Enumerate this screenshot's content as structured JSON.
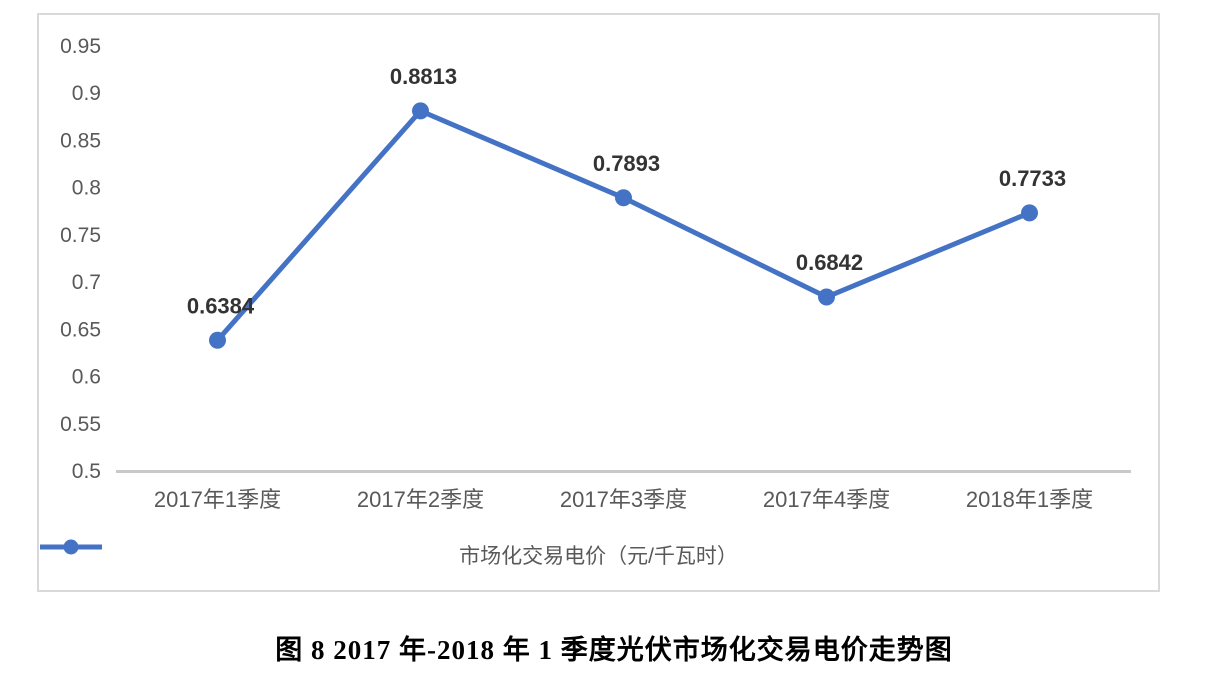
{
  "figure": {
    "caption": "图 8 2017 年-2018 年 1 季度光伏市场化交易电价走势图"
  },
  "chart_data": {
    "type": "line",
    "title": "",
    "categories": [
      "2017年1季度",
      "2017年2季度",
      "2017年3季度",
      "2017年4季度",
      "2018年1季度"
    ],
    "series": [
      {
        "name": "市场化交易电价（元/千瓦时）",
        "values": [
          0.6384,
          0.8813,
          0.7893,
          0.6842,
          0.7733
        ],
        "data_labels": [
          "0.6384",
          "0.8813",
          "0.7893",
          "0.6842",
          "0.7733"
        ],
        "color": "#4472C4"
      }
    ],
    "xlabel": "",
    "ylabel": "",
    "ylim": [
      0.5,
      0.95
    ],
    "ytick_step": 0.05,
    "yticks": [
      "0.95",
      "0.9",
      "0.85",
      "0.8",
      "0.75",
      "0.7",
      "0.65",
      "0.6",
      "0.55",
      "0.5"
    ],
    "grid": false,
    "legend_position": "bottom",
    "markers": true
  },
  "colors": {
    "line": "#4472C4",
    "axis_text": "#595959",
    "data_label_text": "#333333",
    "axis_line": "#c9c9c9",
    "panel_border": "#d9d9d9",
    "background": "#ffffff"
  }
}
